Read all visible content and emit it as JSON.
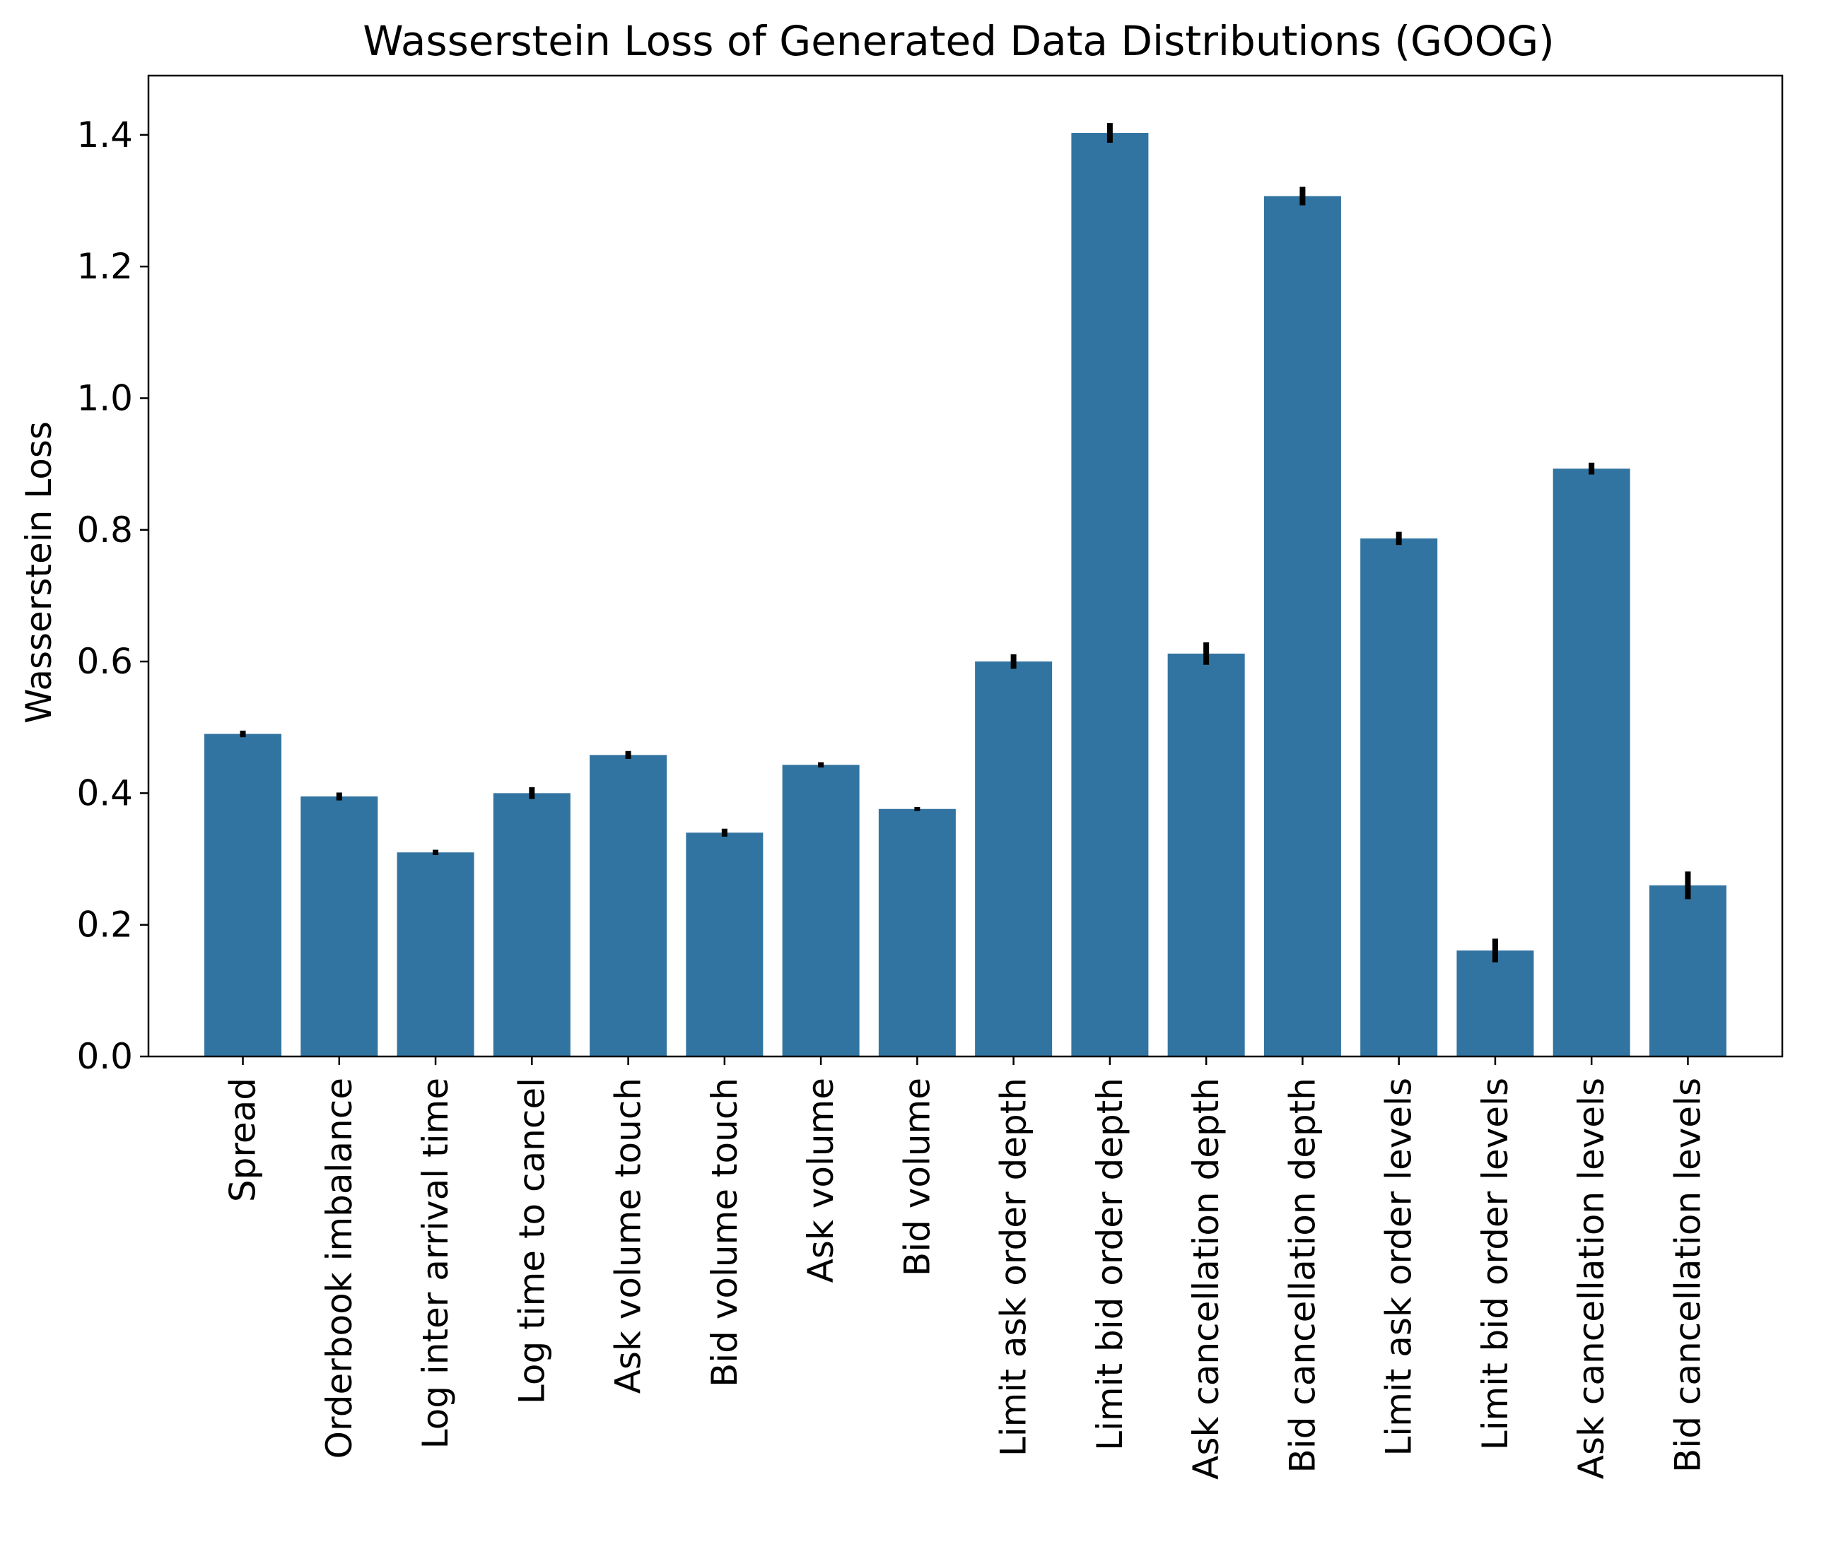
{
  "chart_data": {
    "type": "bar",
    "title": "Wasserstein Loss of Generated Data Distributions (GOOG)",
    "xlabel": "",
    "ylabel": "Wasserstein Loss",
    "ylim": [
      0,
      1.49
    ],
    "yticks": [
      "0.0",
      "0.2",
      "0.4",
      "0.6",
      "0.8",
      "1.0",
      "1.2",
      "1.4"
    ],
    "grid": false,
    "legend": "none",
    "bar_color": "#3274a1",
    "error_color": "#000000",
    "categories": [
      "Spread",
      "Orderbook imbalance",
      "Log inter arrival time",
      "Log time to cancel",
      "Ask volume touch",
      "Bid volume touch",
      "Ask volume",
      "Bid volume",
      "Limit ask order depth",
      "Limit bid order depth",
      "Ask cancellation depth",
      "Bid cancellation depth",
      "Limit ask order levels",
      "Limit bid order levels",
      "Ask cancellation levels",
      "Bid cancellation levels"
    ],
    "values": [
      0.49,
      0.395,
      0.31,
      0.4,
      0.458,
      0.34,
      0.443,
      0.376,
      0.6,
      1.403,
      0.612,
      1.307,
      0.787,
      0.161,
      0.893,
      0.26
    ],
    "errors": [
      0.005,
      0.006,
      0.004,
      0.009,
      0.006,
      0.006,
      0.004,
      0.003,
      0.011,
      0.015,
      0.017,
      0.014,
      0.01,
      0.018,
      0.009,
      0.021
    ]
  }
}
